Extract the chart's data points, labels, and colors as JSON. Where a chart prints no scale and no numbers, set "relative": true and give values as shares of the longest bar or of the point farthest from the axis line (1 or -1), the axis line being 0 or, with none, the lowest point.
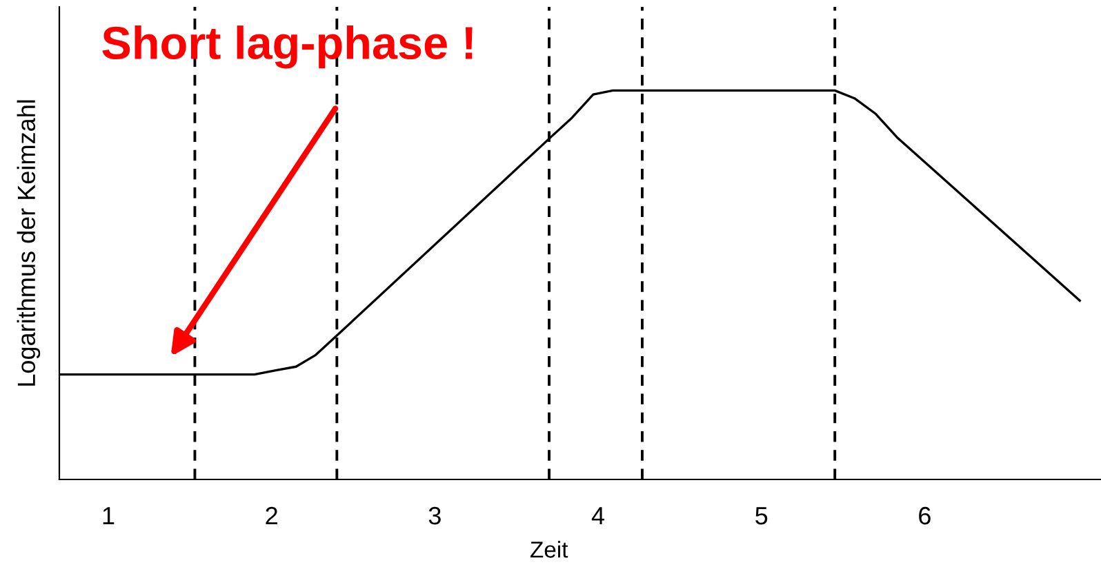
{
  "chart_data": {
    "type": "line",
    "relative": true,
    "xlabel": "Zeit",
    "ylabel": "Logarithmus der Keimzahl",
    "x": [
      0.7,
      1.895,
      2.02,
      2.15,
      2.27,
      2.4,
      3.71,
      3.84,
      3.97,
      4.09,
      5.45,
      5.57,
      5.7,
      5.83,
      6.95
    ],
    "series": [
      {
        "color": "#000000",
        "values": [
          0.27,
          0.27,
          0.28,
          0.29,
          0.32,
          0.37,
          0.88,
          0.93,
          0.99,
          1.0,
          1.0,
          0.98,
          0.94,
          0.88,
          0.46
        ]
      }
    ],
    "xlim": [
      0.7,
      7.08
    ],
    "xticks": [
      1,
      2,
      3,
      4,
      5,
      6
    ],
    "tick_labels": "x",
    "ref_lines": [
      {
        "axis": "x",
        "value": 1.53,
        "color": "#000000",
        "line_style": "dashed"
      },
      {
        "axis": "x",
        "value": 2.4,
        "color": "#000000",
        "line_style": "dashed"
      },
      {
        "axis": "x",
        "value": 3.7,
        "color": "#000000",
        "line_style": "dashed"
      },
      {
        "axis": "x",
        "value": 4.27,
        "color": "#000000",
        "line_style": "dashed"
      },
      {
        "axis": "x",
        "value": 5.45,
        "color": "#000000",
        "line_style": "dashed"
      }
    ],
    "annotations": [
      "Short lag-phase !"
    ],
    "grid": false,
    "legend": false,
    "marker": "none",
    "line_style": "solid"
  }
}
